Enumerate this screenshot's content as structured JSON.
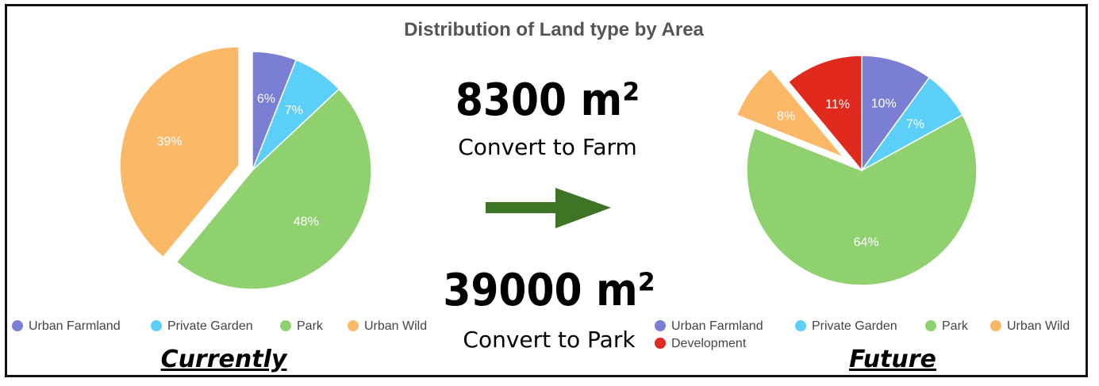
{
  "title": "Distribution of Land type by Area",
  "colors": {
    "Urban Farmland": "#7b7fd4",
    "Private Garden": "#5ccff8",
    "Park": "#8fd16f",
    "Urban Wild": "#fbb968",
    "Development": "#e02a1e"
  },
  "center": {
    "farm_amount": "8300 m²",
    "farm_label": "Convert to Farm",
    "park_amount": "39000 m²",
    "park_label": "Convert to Park"
  },
  "captions": {
    "current": "Currently",
    "future": "Future"
  },
  "chart_data": [
    {
      "type": "pie",
      "label": "Currently",
      "categories": [
        "Urban Farmland",
        "Private Garden",
        "Park",
        "Urban Wild"
      ],
      "values": [
        6,
        7,
        48,
        39
      ],
      "labels": [
        "6%",
        "7%",
        "48%",
        "39%"
      ],
      "exploded": [
        "Urban Wild"
      ],
      "legend": [
        "Urban Farmland",
        "Private Garden",
        "Park",
        "Urban Wild"
      ],
      "legend_position": "bottom"
    },
    {
      "type": "pie",
      "label": "Future",
      "categories": [
        "Urban Farmland",
        "Private Garden",
        "Park",
        "Urban Wild",
        "Development"
      ],
      "values": [
        10,
        7,
        64,
        8,
        11
      ],
      "labels": [
        "10%",
        "7%",
        "64%",
        "8%",
        "11%"
      ],
      "exploded": [
        "Urban Wild"
      ],
      "legend": [
        "Urban Farmland",
        "Private Garden",
        "Park",
        "Urban Wild",
        "Development"
      ],
      "legend_position": "bottom"
    }
  ]
}
